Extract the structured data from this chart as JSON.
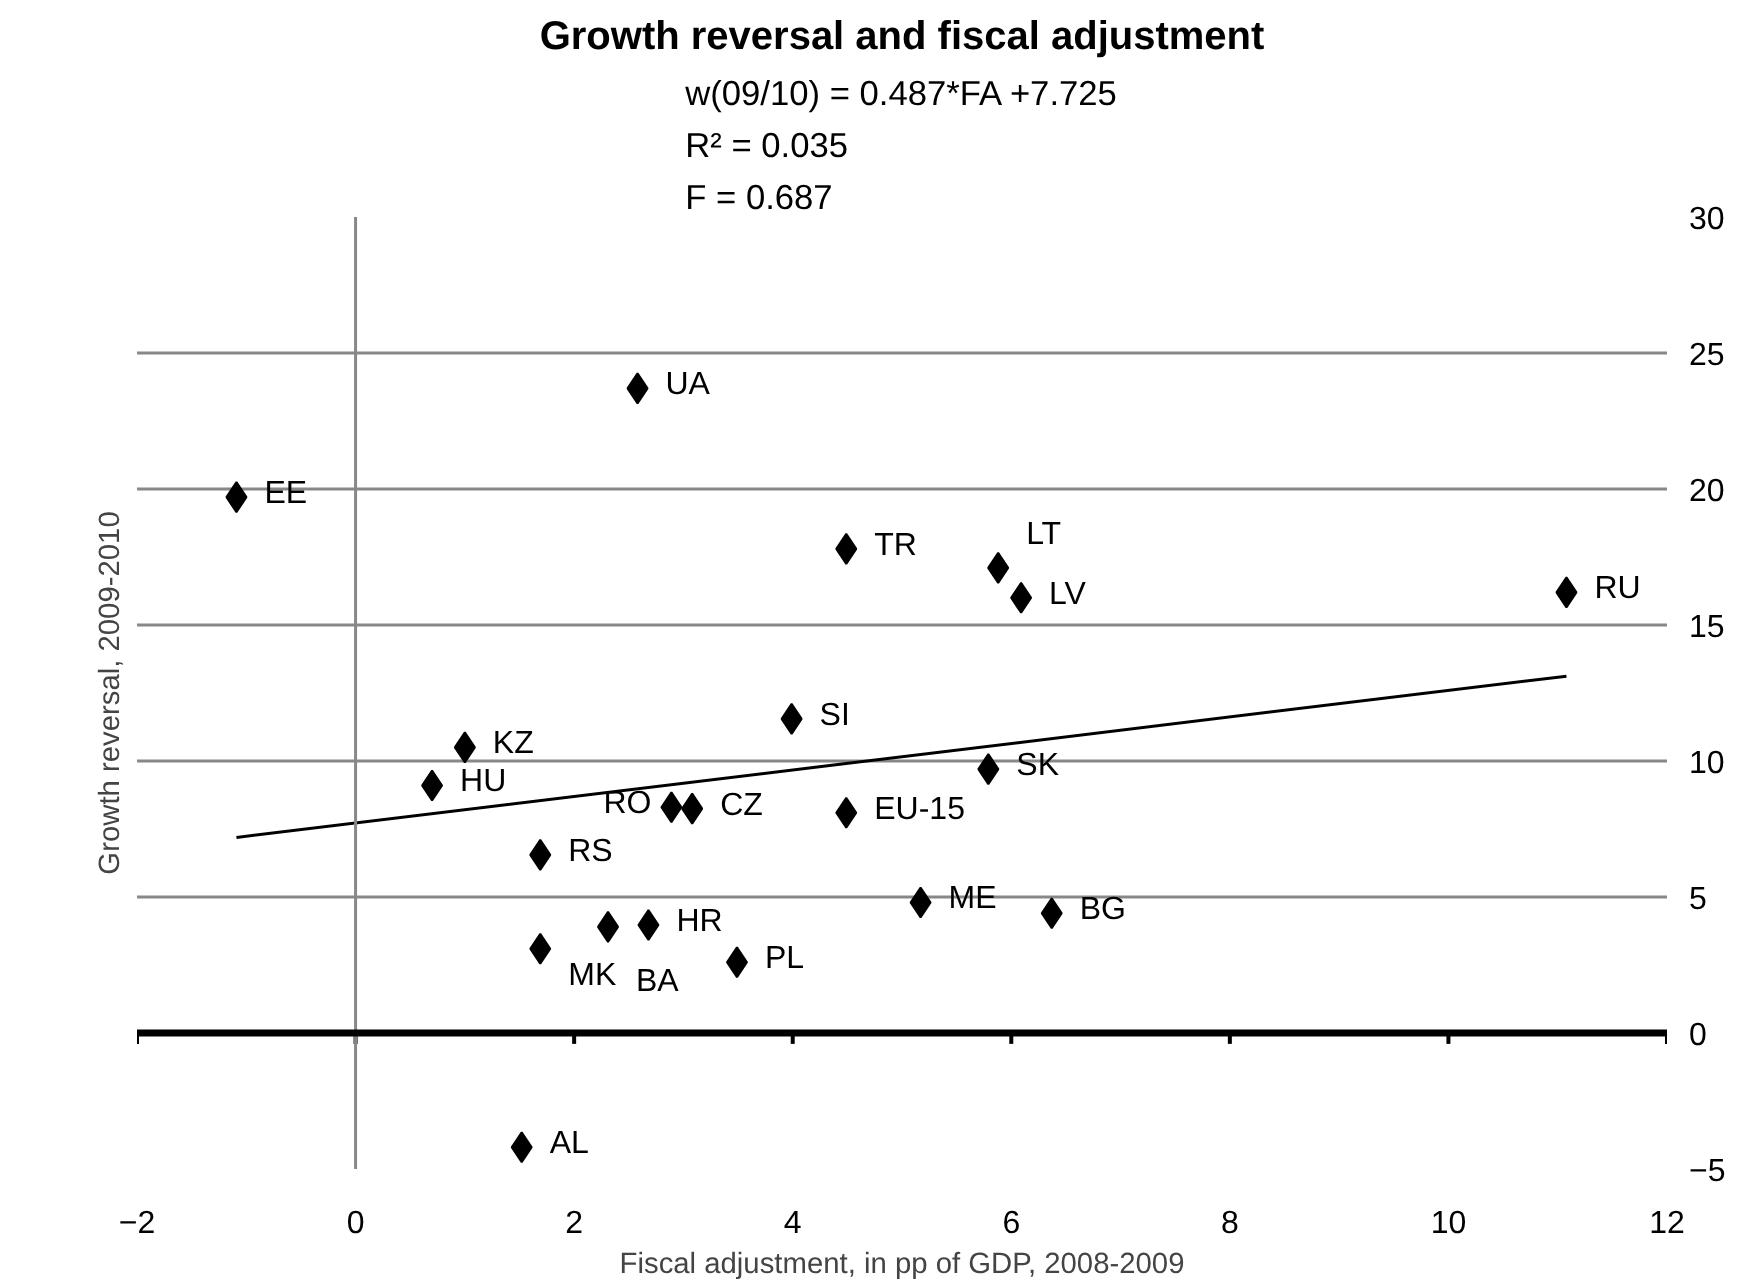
{
  "chart_data": {
    "type": "scatter",
    "title": "Growth reversal and fiscal adjustment",
    "subtitle": "w(09/10) = 0.487*FA +7.725\nR² = 0.035\nF = 0.687",
    "xlabel": "Fiscal adjustment, in pp of GDP, 2008-2009",
    "ylabel": "Growth reversal, 2009-2010",
    "xlim": [
      -2,
      12
    ],
    "xticks": [
      -2,
      0,
      2,
      4,
      6,
      8,
      10,
      12
    ],
    "ylim": [
      -5,
      30
    ],
    "yticks": [
      -5,
      0,
      5,
      10,
      15,
      20,
      25,
      30
    ],
    "grid": "y",
    "ref_lines": [
      {
        "axis": "x",
        "value": 0,
        "color": "#888888"
      }
    ],
    "series": [
      {
        "color": "#000000",
        "marker": "diamond",
        "x": [
          -1.09,
          2.58,
          4.49,
          3.99,
          1.0,
          0.7,
          2.89,
          3.08,
          4.49,
          5.88,
          6.09,
          11.08,
          5.79,
          1.69,
          1.69,
          2.31,
          2.68,
          3.49,
          1.52,
          5.17,
          6.37
        ],
        "values": [
          19.7,
          23.7,
          17.8,
          11.55,
          10.5,
          9.1,
          8.3,
          8.25,
          8.1,
          17.1,
          16.0,
          16.2,
          9.7,
          6.55,
          3.1,
          3.9,
          3.97,
          2.6,
          -4.2,
          4.8,
          4.4
        ]
      },
      {
        "type": "line",
        "marker": "none",
        "color": "#000000",
        "x": [
          -1.09,
          11.08
        ],
        "values": [
          7.19,
          13.12
        ]
      }
    ],
    "annotations": [
      {
        "text": "EE",
        "x": -1.09,
        "y": 19.7
      },
      {
        "text": "UA",
        "x": 2.58,
        "y": 23.7
      },
      {
        "text": "TR",
        "x": 4.49,
        "y": 17.8
      },
      {
        "text": "SI",
        "x": 3.99,
        "y": 11.55
      },
      {
        "text": "KZ",
        "x": 1.0,
        "y": 10.5
      },
      {
        "text": "HU",
        "x": 0.7,
        "y": 9.1
      },
      {
        "text": "RO",
        "x": 2.89,
        "y": 8.3
      },
      {
        "text": "CZ",
        "x": 3.08,
        "y": 8.25
      },
      {
        "text": "EU-15",
        "x": 4.49,
        "y": 8.1
      },
      {
        "text": "LT",
        "x": 5.88,
        "y": 17.1
      },
      {
        "text": "LV",
        "x": 6.09,
        "y": 16.0
      },
      {
        "text": "RU",
        "x": 11.08,
        "y": 16.2
      },
      {
        "text": "SK",
        "x": 5.79,
        "y": 9.7
      },
      {
        "text": "RS",
        "x": 1.69,
        "y": 6.55
      },
      {
        "text": "MK",
        "x": 1.69,
        "y": 3.1
      },
      {
        "text": "BA",
        "x": 2.31,
        "y": 3.9
      },
      {
        "text": "HR",
        "x": 2.68,
        "y": 3.97
      },
      {
        "text": "PL",
        "x": 3.49,
        "y": 2.6
      },
      {
        "text": "AL",
        "x": 1.52,
        "y": -4.2
      },
      {
        "text": "ME",
        "x": 5.17,
        "y": 4.8
      },
      {
        "text": "BG",
        "x": 6.37,
        "y": 4.4
      }
    ]
  }
}
